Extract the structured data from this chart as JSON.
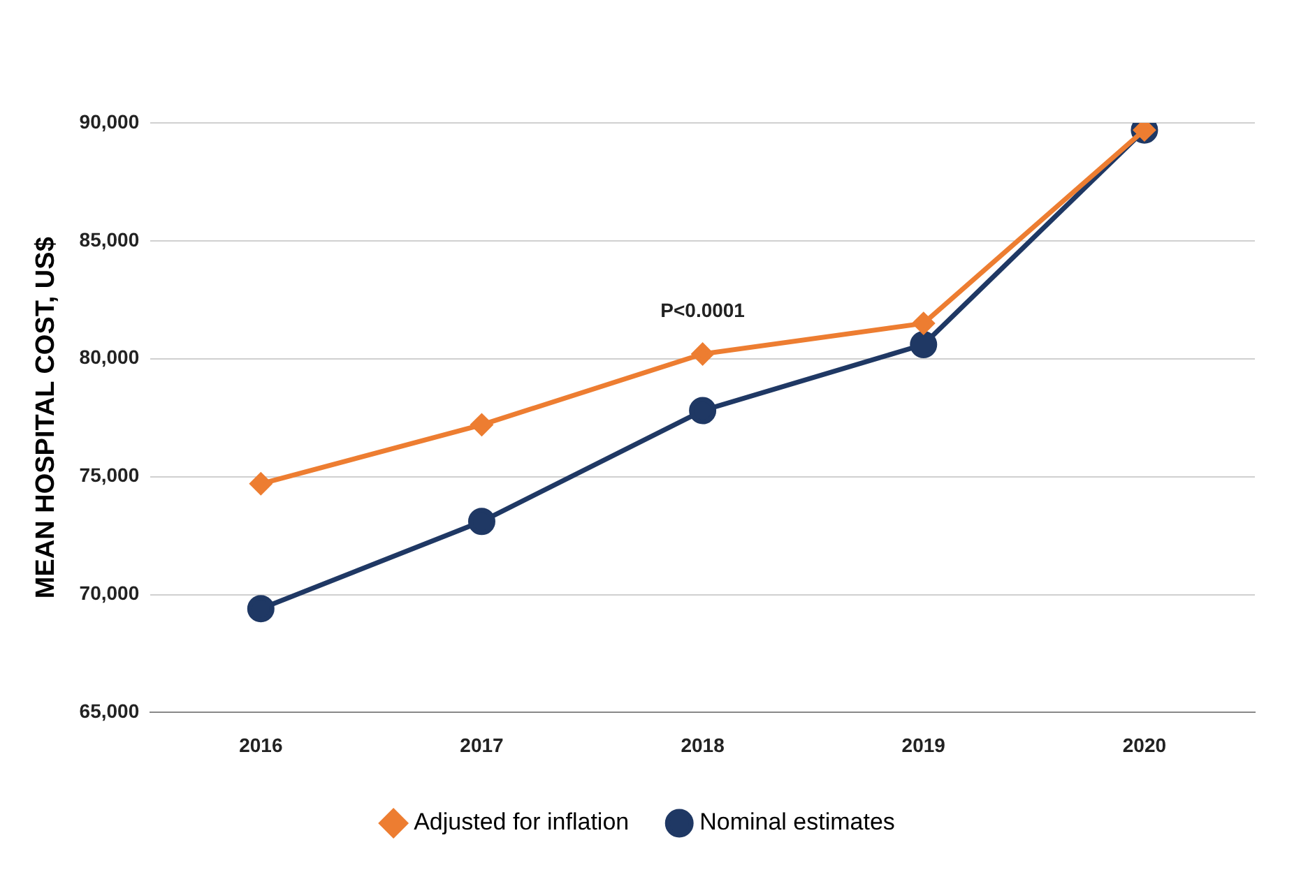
{
  "chart_data": {
    "type": "line",
    "ylabel": "MEAN HOSPITAL COST, US$",
    "categories": [
      "2016",
      "2017",
      "2018",
      "2019",
      "2020"
    ],
    "series": [
      {
        "name": "Adjusted for inflation",
        "color": "#ed7d31",
        "marker": "diamond",
        "values": [
          74700,
          77200,
          80200,
          81500,
          89700
        ]
      },
      {
        "name": "Nominal estimates",
        "color": "#1f3864",
        "marker": "circle",
        "values": [
          69400,
          73100,
          77800,
          80600,
          89700
        ]
      }
    ],
    "ylim": [
      65000,
      90000
    ],
    "yticks": [
      {
        "value": 65000,
        "label": "65,000"
      },
      {
        "value": 70000,
        "label": "70,000"
      },
      {
        "value": 75000,
        "label": "75,000"
      },
      {
        "value": 80000,
        "label": "80,000"
      },
      {
        "value": 85000,
        "label": "85,000"
      },
      {
        "value": 90000,
        "label": "90,000"
      }
    ],
    "grid": "y",
    "legend": "bottom",
    "line_style": "solid",
    "annotations": [
      "P<0.0001"
    ]
  }
}
